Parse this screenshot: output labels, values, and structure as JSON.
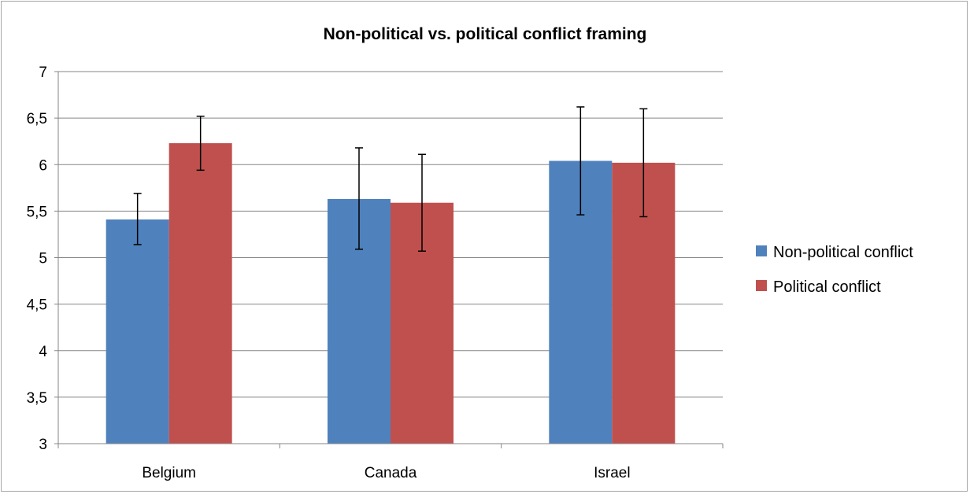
{
  "chart_data": {
    "type": "bar",
    "title": "Non-political vs. political conflict framing",
    "xlabel": "",
    "ylabel": "",
    "categories": [
      "Belgium",
      "Canada",
      "Israel"
    ],
    "series": [
      {
        "name": "Non-political conflict",
        "color": "#4f81bd",
        "values": [
          5.41,
          5.63,
          6.04
        ],
        "error_low": [
          5.14,
          5.09,
          5.46
        ],
        "error_high": [
          5.69,
          6.18,
          6.62
        ]
      },
      {
        "name": "Political conflict",
        "color": "#c0504d",
        "values": [
          6.23,
          5.59,
          6.02
        ],
        "error_low": [
          5.94,
          5.07,
          5.44
        ],
        "error_high": [
          6.52,
          6.11,
          6.6
        ]
      }
    ],
    "ylim": [
      3,
      7
    ],
    "yticks": [
      "3",
      "3,5",
      "4",
      "4,5",
      "5",
      "5,5",
      "6",
      "6,5",
      "7"
    ],
    "ytick_values": [
      3,
      3.5,
      4,
      4.5,
      5,
      5.5,
      6,
      6.5,
      7
    ],
    "grid": true,
    "legend_position": "right",
    "gridline_color": "#868686",
    "axis_color": "#868686"
  }
}
